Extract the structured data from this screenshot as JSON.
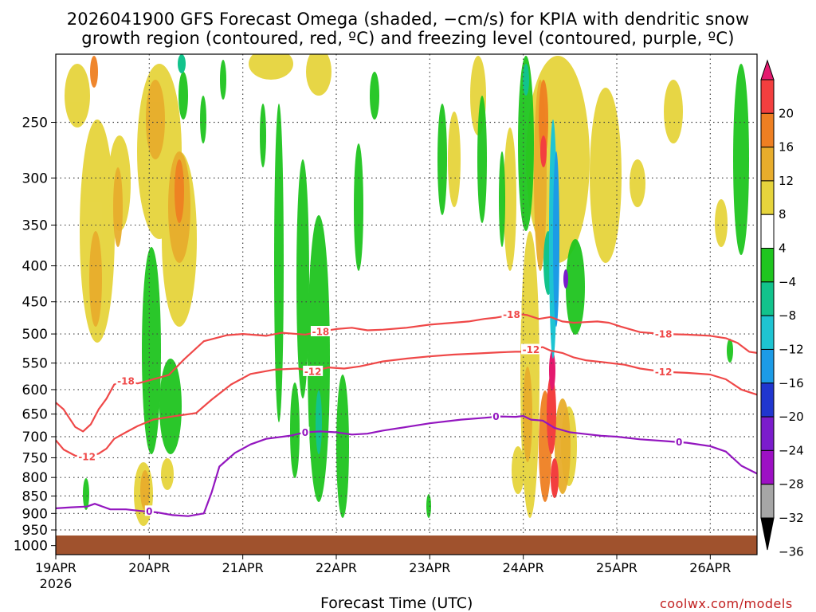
{
  "header": {
    "title_line1": "2026041900 GFS Forecast Omega (shaded, −cm/s) for KPIA with dendritic snow",
    "title_line2": "growth region (contoured, red, ºC) and freezing level (contoured, purple, ºC)"
  },
  "footer": {
    "x_axis_title": "Forecast Time (UTC)",
    "credit": "coolwx.com/models"
  },
  "chart_data": {
    "type": "time-height cross section",
    "title": "2026041900 GFS Forecast Omega (shaded, −cm/s) for KPIA with dendritic snow growth region (contoured, red, ºC) and freezing level (contoured, purple, ºC)",
    "xlabel": "Forecast Time (UTC)",
    "ylabel": "",
    "x_unit": "hours since 2026041900",
    "x_range": [
      0,
      180
    ],
    "y_range_hpa": [
      1030,
      200
    ],
    "x_ticks": [
      {
        "h": 0,
        "label": "19APR",
        "sub": "2026"
      },
      {
        "h": 24,
        "label": "20APR"
      },
      {
        "h": 48,
        "label": "21APR"
      },
      {
        "h": 72,
        "label": "22APR"
      },
      {
        "h": 96,
        "label": "23APR"
      },
      {
        "h": 120,
        "label": "24APR"
      },
      {
        "h": 144,
        "label": "25APR"
      },
      {
        "h": 168,
        "label": "26APR"
      }
    ],
    "y_ticks": [
      250,
      300,
      350,
      400,
      450,
      500,
      550,
      600,
      650,
      700,
      750,
      800,
      850,
      900,
      950,
      1000
    ],
    "colorbar": {
      "levels": [
        -36,
        -32,
        -28,
        -24,
        -20,
        -16,
        -12,
        -8,
        -4,
        4,
        8,
        12,
        16,
        20
      ],
      "labels": [
        "20",
        "16",
        "12",
        "8",
        "4",
        "−4",
        "−8",
        "−12",
        "−16",
        "−20",
        "−24",
        "−28",
        "−32",
        "−36"
      ],
      "colors": [
        "#e4196e",
        "#f33f3f",
        "#ee7f22",
        "#e8ad2c",
        "#e6d43c",
        "#ffffff",
        "#1fc51f",
        "#12c38c",
        "#1ec4d2",
        "#1c9be6",
        "#2036cf",
        "#7b1ccc",
        "#9d10c4",
        "#a6a6a6",
        "#000000"
      ]
    },
    "series": [
      {
        "name": "-18 ºC",
        "color": "#ef4848",
        "label": "-18",
        "points": [
          [
            0,
            626
          ],
          [
            2,
            640
          ],
          [
            5,
            678
          ],
          [
            7,
            688
          ],
          [
            9,
            672
          ],
          [
            11,
            640
          ],
          [
            13,
            618
          ],
          [
            15,
            590
          ],
          [
            18,
            583
          ],
          [
            21,
            588
          ],
          [
            24,
            582
          ],
          [
            29,
            572
          ],
          [
            33,
            543
          ],
          [
            38,
            512
          ],
          [
            44,
            502
          ],
          [
            48,
            500
          ],
          [
            54,
            503
          ],
          [
            58,
            498
          ],
          [
            64,
            501
          ],
          [
            68,
            496
          ],
          [
            72,
            492
          ],
          [
            76,
            490
          ],
          [
            80,
            494
          ],
          [
            84,
            493
          ],
          [
            90,
            490
          ],
          [
            96,
            485
          ],
          [
            102,
            482
          ],
          [
            106,
            480
          ],
          [
            110,
            476
          ],
          [
            113,
            474
          ],
          [
            116,
            471
          ],
          [
            118,
            468
          ],
          [
            121,
            470
          ],
          [
            124,
            476
          ],
          [
            127,
            473
          ],
          [
            130,
            480
          ],
          [
            133,
            482
          ],
          [
            136,
            481
          ],
          [
            139,
            480
          ],
          [
            142,
            482
          ],
          [
            145,
            488
          ],
          [
            150,
            497
          ],
          [
            156,
            500
          ],
          [
            162,
            501
          ],
          [
            168,
            503
          ],
          [
            172,
            507
          ],
          [
            175,
            515
          ],
          [
            178,
            530
          ],
          [
            180,
            532
          ]
        ],
        "label_positions": [
          [
            18,
            583
          ],
          [
            68,
            496
          ],
          [
            117,
            469
          ],
          [
            156,
            500
          ]
        ]
      },
      {
        "name": "-12 ºC",
        "color": "#ef4848",
        "label": "-12",
        "points": [
          [
            0,
            708
          ],
          [
            2,
            730
          ],
          [
            5,
            745
          ],
          [
            8,
            747
          ],
          [
            11,
            740
          ],
          [
            13,
            728
          ],
          [
            15,
            705
          ],
          [
            18,
            690
          ],
          [
            21,
            676
          ],
          [
            25,
            662
          ],
          [
            30,
            655
          ],
          [
            36,
            648
          ],
          [
            40,
            620
          ],
          [
            45,
            590
          ],
          [
            50,
            570
          ],
          [
            56,
            562
          ],
          [
            62,
            560
          ],
          [
            66,
            565
          ],
          [
            70,
            558
          ],
          [
            74,
            560
          ],
          [
            78,
            556
          ],
          [
            84,
            547
          ],
          [
            90,
            542
          ],
          [
            96,
            538
          ],
          [
            102,
            535
          ],
          [
            108,
            533
          ],
          [
            114,
            531
          ],
          [
            118,
            530
          ],
          [
            120,
            530
          ],
          [
            122,
            526
          ],
          [
            125,
            522
          ],
          [
            127,
            528
          ],
          [
            130,
            532
          ],
          [
            133,
            540
          ],
          [
            136,
            545
          ],
          [
            140,
            548
          ],
          [
            146,
            553
          ],
          [
            150,
            560
          ],
          [
            156,
            566
          ],
          [
            162,
            568
          ],
          [
            168,
            571
          ],
          [
            172,
            580
          ],
          [
            176,
            600
          ],
          [
            180,
            610
          ]
        ],
        "label_positions": [
          [
            8,
            747
          ],
          [
            66,
            565
          ],
          [
            122,
            526
          ],
          [
            156,
            566
          ]
        ]
      },
      {
        "name": "0 ºC",
        "color": "#9316bf",
        "label": "0",
        "points": [
          [
            0,
            885
          ],
          [
            4,
            882
          ],
          [
            8,
            880
          ],
          [
            10,
            872
          ],
          [
            14,
            888
          ],
          [
            18,
            888
          ],
          [
            22,
            893
          ],
          [
            26,
            897
          ],
          [
            30,
            905
          ],
          [
            34,
            908
          ],
          [
            38,
            900
          ],
          [
            40,
            840
          ],
          [
            42,
            772
          ],
          [
            46,
            738
          ],
          [
            50,
            718
          ],
          [
            54,
            705
          ],
          [
            60,
            698
          ],
          [
            64,
            690
          ],
          [
            68,
            688
          ],
          [
            72,
            690
          ],
          [
            76,
            695
          ],
          [
            80,
            693
          ],
          [
            84,
            686
          ],
          [
            90,
            678
          ],
          [
            96,
            670
          ],
          [
            104,
            662
          ],
          [
            110,
            658
          ],
          [
            114,
            655
          ],
          [
            118,
            656
          ],
          [
            120,
            654
          ],
          [
            122,
            662
          ],
          [
            125,
            664
          ],
          [
            128,
            680
          ],
          [
            132,
            690
          ],
          [
            136,
            694
          ],
          [
            140,
            698
          ],
          [
            144,
            700
          ],
          [
            150,
            706
          ],
          [
            156,
            710
          ],
          [
            162,
            714
          ],
          [
            168,
            722
          ],
          [
            172,
            735
          ],
          [
            176,
            770
          ],
          [
            180,
            790
          ]
        ],
        "label_positions": [
          [
            24,
            893
          ],
          [
            64,
            690
          ],
          [
            113,
            655
          ],
          [
            160,
            712
          ]
        ]
      }
    ]
  }
}
